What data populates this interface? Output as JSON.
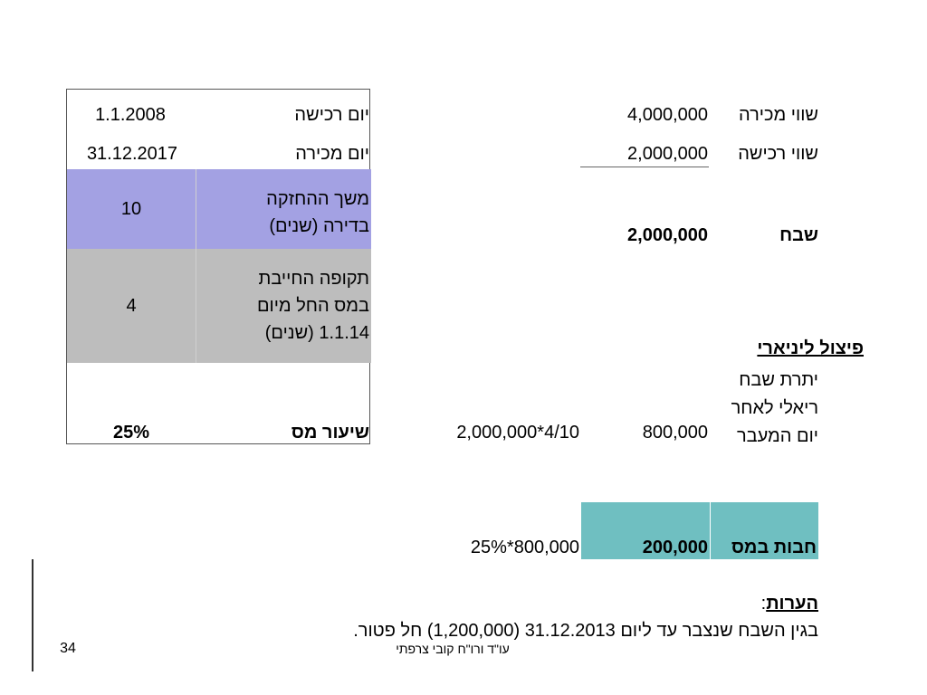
{
  "left_table": {
    "purchase_date_label": "יום רכישה",
    "purchase_date_value": "1.1.2008",
    "sale_date_label": "יום מכירה",
    "sale_date_value": "31.12.2017",
    "holding_label_line1": "משך ההחזקה",
    "holding_label_line2": "בדירה (שנים)",
    "holding_value": "10",
    "taxable_label_line1": "תקופה החייבת",
    "taxable_label_line2": "במס החל מיום",
    "taxable_label_line3": "1.1.14 (שנים)",
    "taxable_value": "4",
    "tax_rate_label": "שיעור מס",
    "tax_rate_value": "25%"
  },
  "right_table": {
    "sale_value_label": "שווי מכירה",
    "sale_value": "4,000,000",
    "purchase_value_label": "שווי רכישה",
    "purchase_value": "2,000,000",
    "gain_label": "שבח",
    "gain_value": "2,000,000",
    "linear_split_heading": "פיצול ליניארי",
    "real_gain_line1": "יתרת שבח",
    "real_gain_line2": "ריאלי לאחר",
    "real_gain_line3": "יום המעבר",
    "real_gain_value": "800,000",
    "real_gain_formula": "2,000,000*4/10",
    "tax_liability_label": "חבות במס",
    "tax_liability_value": "200,000",
    "tax_liability_formula": "25%*800,000"
  },
  "notes": {
    "heading": "הערות",
    "colon": ":",
    "text": "בגין השבח שנצבר עד ליום 31.12.2013 (1,200,000) חל פטור."
  },
  "footer": {
    "author": "עו\"ד ורו\"ח קובי צרפתי",
    "page_number": "34"
  },
  "colors": {
    "purple_band": "#a3a1e3",
    "gray_band": "#bdbdbd",
    "teal_highlight": "#6fbfc1"
  }
}
